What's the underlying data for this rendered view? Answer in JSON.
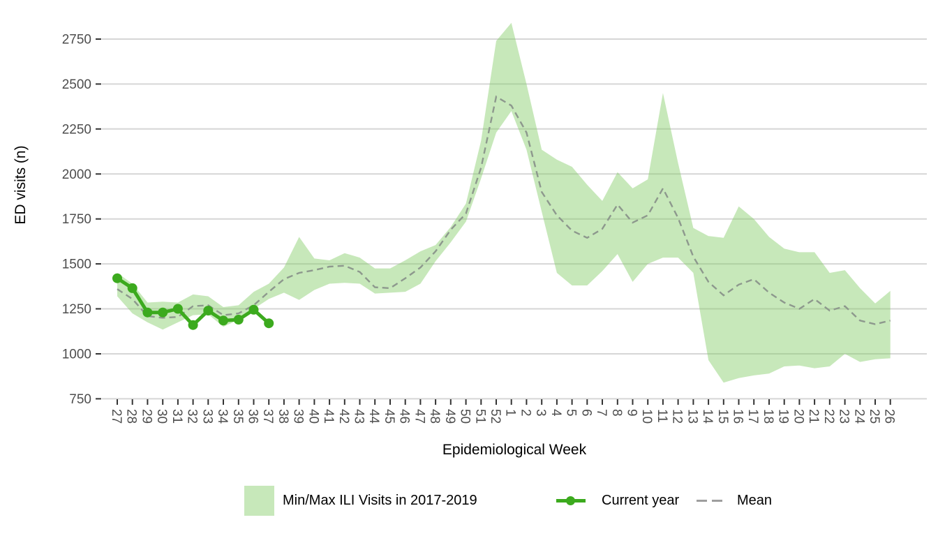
{
  "figure": {
    "ylabel": "ED visits (n)",
    "xlabel": "Epidemiological Week",
    "legend": {
      "ribbon_label": "Min/Max ILI Visits in 2017-2019",
      "current_label": "Current year",
      "mean_label": "Mean"
    },
    "colors": {
      "ribbon_base": "#83cc66",
      "ribbon_alpha": 0.45,
      "current_green": "#3caa1e",
      "mean_dash": "#8d988d",
      "legend_dash": "#9e9e9e",
      "grid": "#d6d6d6",
      "tick_mark": "#333333",
      "tick_label": "#4d4d4d",
      "title_text": "#000000"
    }
  },
  "chart_data": {
    "type": "line",
    "title": "",
    "xlabel": "Epidemiological Week",
    "ylabel": "ED visits (n)",
    "grid": "horizontal-major-only",
    "legend_position": "bottom",
    "y_ticks": [
      750,
      1000,
      1250,
      1500,
      1750,
      2000,
      2250,
      2500,
      2750
    ],
    "ylim": [
      750,
      2850
    ],
    "x_categories": [
      "27",
      "28",
      "29",
      "30",
      "31",
      "32",
      "33",
      "34",
      "35",
      "36",
      "37",
      "38",
      "39",
      "40",
      "41",
      "42",
      "43",
      "44",
      "45",
      "46",
      "47",
      "48",
      "49",
      "50",
      "51",
      "52",
      "1",
      "2",
      "3",
      "4",
      "5",
      "6",
      "7",
      "8",
      "9",
      "10",
      "11",
      "12",
      "13",
      "14",
      "15",
      "16",
      "17",
      "18",
      "19",
      "20",
      "21",
      "22",
      "23",
      "24",
      "25",
      "26"
    ],
    "series": [
      {
        "name": "Min/Max ILI Visits in 2017-2019",
        "type": "ribbon",
        "min": [
          1320,
          1225,
          1175,
          1135,
          1175,
          1215,
          1220,
          1150,
          1190,
          1250,
          1305,
          1340,
          1300,
          1355,
          1390,
          1395,
          1390,
          1335,
          1340,
          1345,
          1390,
          1515,
          1620,
          1735,
          1975,
          2230,
          2350,
          2135,
          1790,
          1450,
          1380,
          1380,
          1460,
          1555,
          1400,
          1500,
          1535,
          1535,
          1450,
          965,
          840,
          865,
          880,
          890,
          930,
          935,
          920,
          930,
          1000,
          955,
          970,
          975
        ],
        "max": [
          1450,
          1390,
          1285,
          1290,
          1285,
          1330,
          1320,
          1260,
          1270,
          1345,
          1390,
          1480,
          1650,
          1530,
          1520,
          1560,
          1535,
          1475,
          1475,
          1520,
          1570,
          1605,
          1705,
          1835,
          2185,
          2740,
          2840,
          2500,
          2135,
          2080,
          2040,
          1940,
          1850,
          2010,
          1920,
          1970,
          2450,
          2060,
          1700,
          1655,
          1645,
          1820,
          1750,
          1650,
          1585,
          1565,
          1565,
          1450,
          1465,
          1365,
          1280,
          1350
        ]
      },
      {
        "name": "Mean",
        "type": "dashed-line",
        "values": [
          1360,
          1305,
          1210,
          1200,
          1205,
          1265,
          1270,
          1215,
          1225,
          1270,
          1345,
          1415,
          1450,
          1465,
          1485,
          1490,
          1455,
          1370,
          1365,
          1420,
          1480,
          1570,
          1690,
          1780,
          2035,
          2430,
          2380,
          2230,
          1900,
          1770,
          1685,
          1645,
          1695,
          1830,
          1730,
          1770,
          1920,
          1755,
          1540,
          1400,
          1325,
          1385,
          1415,
          1340,
          1285,
          1250,
          1305,
          1240,
          1265,
          1185,
          1165,
          1185
        ]
      },
      {
        "name": "Current year",
        "type": "line-with-markers",
        "x_categories": [
          "27",
          "28",
          "29",
          "30",
          "31",
          "32",
          "33",
          "34",
          "35",
          "36",
          "37"
        ],
        "values": [
          1420,
          1365,
          1230,
          1230,
          1250,
          1160,
          1240,
          1185,
          1190,
          1245,
          1170
        ]
      }
    ]
  }
}
